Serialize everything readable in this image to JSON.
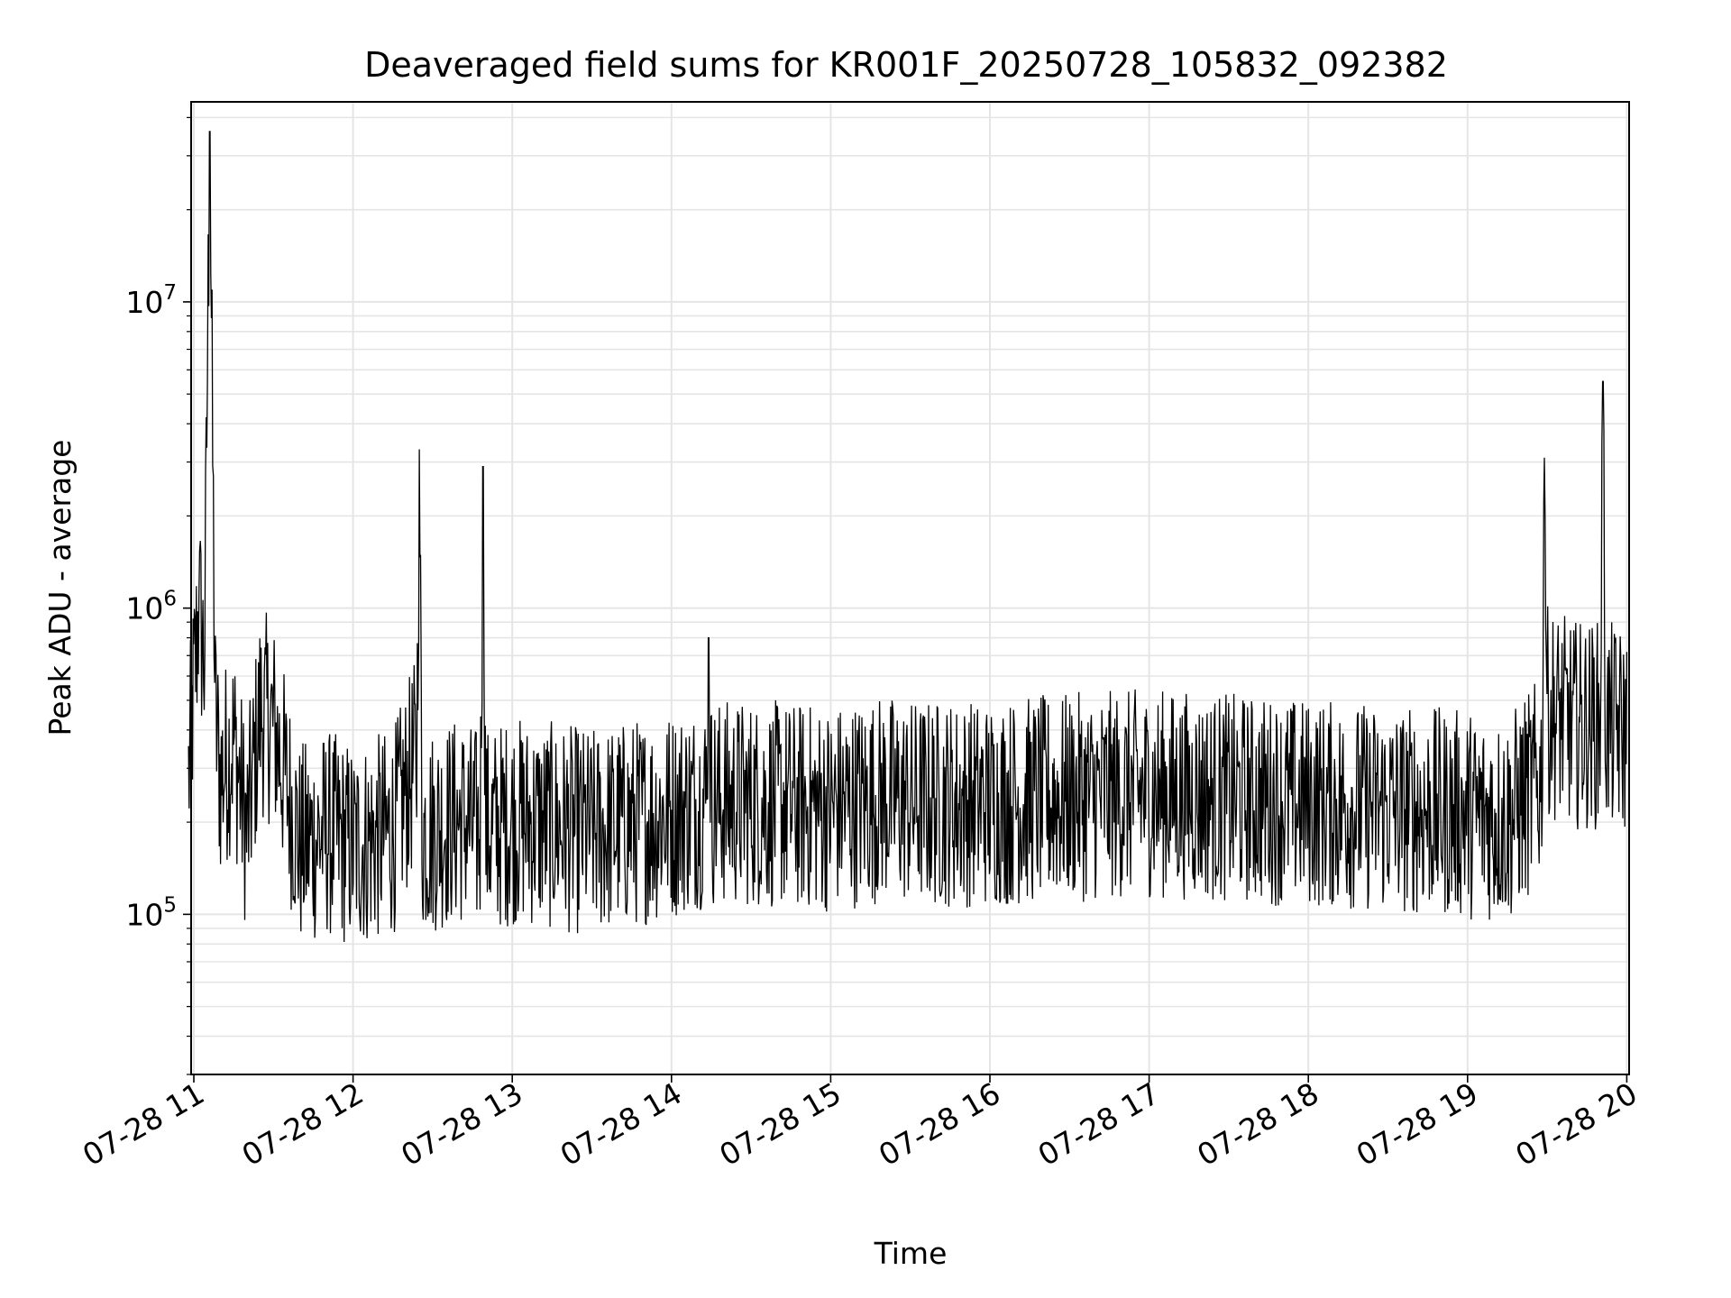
{
  "chart_data": {
    "type": "line",
    "title": "Deaveraged field sums for KR001F_20250728_105832_092382",
    "xlabel": "Time",
    "ylabel": "Peak ADU - average",
    "yscale": "log",
    "ylim": [
      30000,
      45000000
    ],
    "xlim": [
      "2025-07-28 10:58",
      "2025-07-28 20:00"
    ],
    "grid": "on (major and minor)",
    "line_color": "#000000",
    "grid_color": "#e5e5e5",
    "x_ticks": [
      "07-28 11",
      "07-28 12",
      "07-28 13",
      "07-28 14",
      "07-28 15",
      "07-28 16",
      "07-28 17",
      "07-28 18",
      "07-28 19",
      "07-28 20"
    ],
    "y_ticks": [
      {
        "base": "10",
        "exp": "5",
        "value": 100000
      },
      {
        "base": "10",
        "exp": "6",
        "value": 1000000
      },
      {
        "base": "10",
        "exp": "7",
        "value": 10000000
      }
    ],
    "series": [
      {
        "x": [
          "2025-07-28 10:58",
          "2025-07-28 11:00",
          "2025-07-28 11:02",
          "2025-07-28 11:04",
          "2025-07-28 11:06",
          "2025-07-28 11:08",
          "2025-07-28 11:10",
          "2025-07-28 11:15",
          "2025-07-28 11:20",
          "2025-07-28 11:25",
          "2025-07-28 11:30",
          "2025-07-28 11:40",
          "2025-07-28 11:50",
          "2025-07-28 12:00",
          "2025-07-28 12:15",
          "2025-07-28 12:24",
          "2025-07-28 12:25",
          "2025-07-28 12:26",
          "2025-07-28 12:40",
          "2025-07-28 12:48",
          "2025-07-28 12:49",
          "2025-07-28 12:50",
          "2025-07-28 13:00",
          "2025-07-28 13:30",
          "2025-07-28 14:00",
          "2025-07-28 14:13",
          "2025-07-28 14:14",
          "2025-07-28 14:15",
          "2025-07-28 14:30",
          "2025-07-28 15:00",
          "2025-07-28 15:20",
          "2025-07-28 15:30",
          "2025-07-28 16:00",
          "2025-07-28 16:30",
          "2025-07-28 17:00",
          "2025-07-28 17:30",
          "2025-07-28 18:00",
          "2025-07-28 18:30",
          "2025-07-28 19:00",
          "2025-07-28 19:15",
          "2025-07-28 19:28",
          "2025-07-28 19:29",
          "2025-07-28 19:30",
          "2025-07-28 19:40",
          "2025-07-28 19:50",
          "2025-07-28 19:51",
          "2025-07-28 19:52",
          "2025-07-28 20:00"
        ],
        "y": [
          300000,
          600000,
          1100000,
          700000,
          36000000,
          500000,
          300000,
          400000,
          200000,
          500000,
          450000,
          180000,
          200000,
          180000,
          200000,
          350000,
          3300000,
          200000,
          220000,
          200000,
          2900000,
          200000,
          220000,
          200000,
          230000,
          250000,
          800000,
          250000,
          250000,
          240000,
          260000,
          250000,
          250000,
          260000,
          270000,
          260000,
          250000,
          240000,
          230000,
          220000,
          300000,
          3100000,
          500000,
          450000,
          450000,
          5500000,
          450000,
          420000
        ]
      }
    ]
  }
}
